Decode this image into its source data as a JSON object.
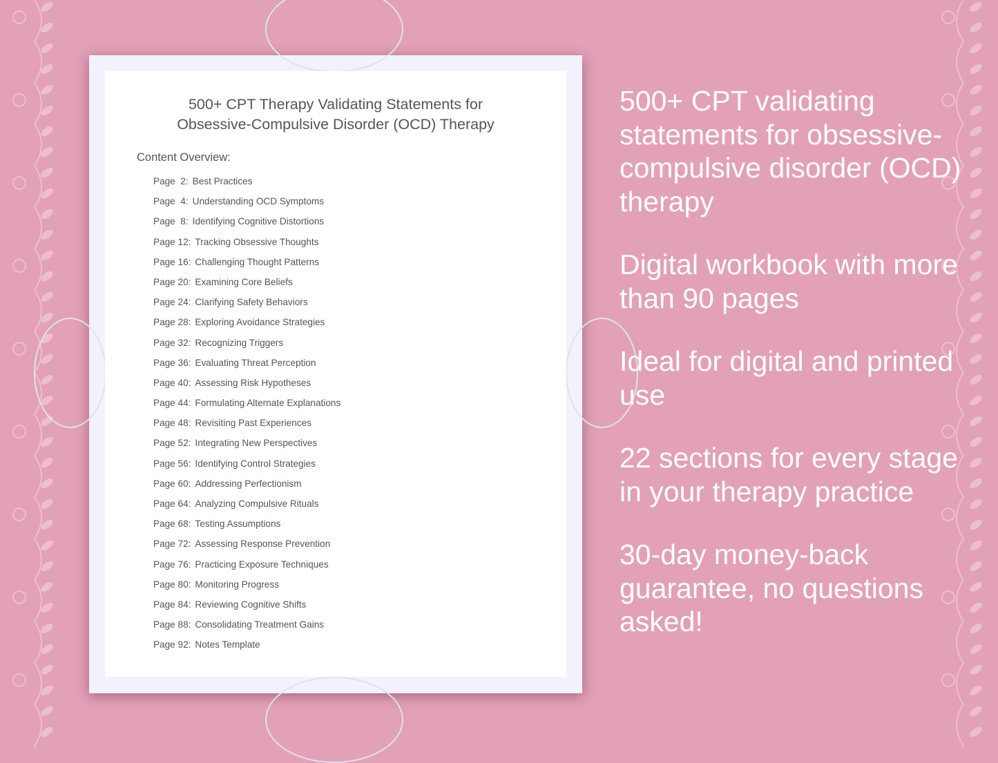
{
  "document": {
    "title_line1": "500+ CPT Therapy Validating Statements for",
    "title_line2": "Obsessive-Compulsive Disorder (OCD) Therapy",
    "overview_label": "Content Overview:",
    "items": [
      {
        "page": "Page  2:",
        "label": "Best Practices"
      },
      {
        "page": "Page  4:",
        "label": "Understanding OCD Symptoms"
      },
      {
        "page": "Page  8:",
        "label": "Identifying Cognitive Distortions"
      },
      {
        "page": "Page 12:",
        "label": "Tracking Obsessive Thoughts"
      },
      {
        "page": "Page 16:",
        "label": "Challenging Thought Patterns"
      },
      {
        "page": "Page 20:",
        "label": "Examining Core Beliefs"
      },
      {
        "page": "Page 24:",
        "label": "Clarifying Safety Behaviors"
      },
      {
        "page": "Page 28:",
        "label": "Exploring Avoidance Strategies"
      },
      {
        "page": "Page 32:",
        "label": "Recognizing Triggers"
      },
      {
        "page": "Page 36:",
        "label": "Evaluating Threat Perception"
      },
      {
        "page": "Page 40:",
        "label": "Assessing Risk Hypotheses"
      },
      {
        "page": "Page 44:",
        "label": "Formulating Alternate Explanations"
      },
      {
        "page": "Page 48:",
        "label": "Revisiting Past Experiences"
      },
      {
        "page": "Page 52:",
        "label": "Integrating New Perspectives"
      },
      {
        "page": "Page 56:",
        "label": "Identifying Control Strategies"
      },
      {
        "page": "Page 60:",
        "label": "Addressing Perfectionism"
      },
      {
        "page": "Page 64:",
        "label": "Analyzing Compulsive Rituals"
      },
      {
        "page": "Page 68:",
        "label": "Testing Assumptions"
      },
      {
        "page": "Page 72:",
        "label": "Assessing Response Prevention"
      },
      {
        "page": "Page 76:",
        "label": "Practicing Exposure Techniques"
      },
      {
        "page": "Page 80:",
        "label": "Monitoring Progress"
      },
      {
        "page": "Page 84:",
        "label": "Reviewing Cognitive Shifts"
      },
      {
        "page": "Page 88:",
        "label": "Consolidating Treatment Gains"
      },
      {
        "page": "Page 92:",
        "label": "Notes Template"
      }
    ]
  },
  "features": [
    "500+ CPT validating statements for obsessive-compulsive disorder (OCD) therapy",
    "Digital workbook with more than 90 pages",
    "Ideal for digital and printed use",
    "22 sections for every stage in your therapy practice",
    "30-day money-back guarantee, no questions asked!"
  ],
  "colors": {
    "background": "#e2a1b7",
    "text_light": "#ffffff",
    "page_text": "#555555"
  }
}
